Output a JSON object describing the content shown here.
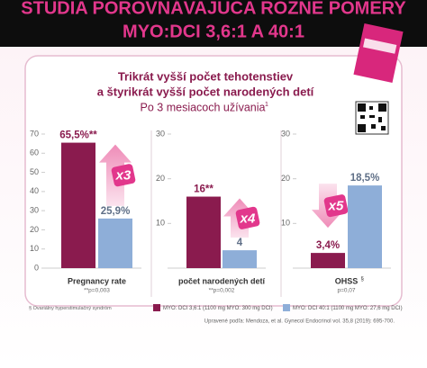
{
  "header": {
    "title": "ŠTÚDIA POROVNÁVAJÚCA RÔZNE POMERY",
    "subtitle": "MYO:DCI 3,6:1 A 40:1"
  },
  "panel": {
    "headline": [
      "Trikrát vyšší počet tehotenstiev",
      "a štyrikrát vyšší počet narodených detí"
    ],
    "subheading": "Po 3 mesiacoch užívania",
    "subheading_superscript": "1"
  },
  "chart_data": [
    {
      "type": "bar",
      "categories": [
        "Pregnancy rate"
      ],
      "note": "**p=0,003",
      "annotation": "x3",
      "series": [
        {
          "name": "MYO: DCI 3,6:1 (1100 mg MYO: 300 mg DCI)",
          "color": "#8a1b4e",
          "values": [
            65.5
          ],
          "value_labels": [
            "65,5%**"
          ]
        },
        {
          "name": "MYO: DCI 40:1 (1100 mg MYO: 27,6 mg DCI)",
          "color": "#8eaed8",
          "values": [
            25.9
          ],
          "value_labels": [
            "25,9%"
          ]
        }
      ],
      "ylim": [
        0,
        70
      ],
      "yticks": [
        0,
        10,
        20,
        30,
        40,
        50,
        60,
        70
      ]
    },
    {
      "type": "bar",
      "categories": [
        "počet narodených detí"
      ],
      "note": "**p=0,002",
      "annotation": "x4",
      "series": [
        {
          "color": "#8a1b4e",
          "values": [
            16
          ],
          "value_labels": [
            "16**"
          ]
        },
        {
          "color": "#8eaed8",
          "values": [
            4
          ]
        }
      ],
      "ylim": [
        0,
        30
      ],
      "yticks": [
        10,
        20,
        30
      ]
    },
    {
      "type": "bar",
      "categories": [
        "OHSS"
      ],
      "category_superscript": "§",
      "note": "p=0,07",
      "annotation": "x5",
      "series": [
        {
          "color": "#8a1b4e",
          "values": [
            3.4
          ],
          "value_labels": [
            "3,4%"
          ]
        },
        {
          "color": "#8eaed8",
          "values": [
            18.5
          ],
          "value_labels": [
            "18,5%"
          ]
        }
      ],
      "ylim": [
        0,
        30
      ],
      "yticks": [
        10,
        20,
        30
      ]
    }
  ],
  "footnotes": {
    "ohss": "§ Ovariálny hyperstimulačný syndróm",
    "source": "Upravené podľa: Mendoza, et al. Gynecol Endocrinol vol. 35,8 (2019): 695-700."
  }
}
